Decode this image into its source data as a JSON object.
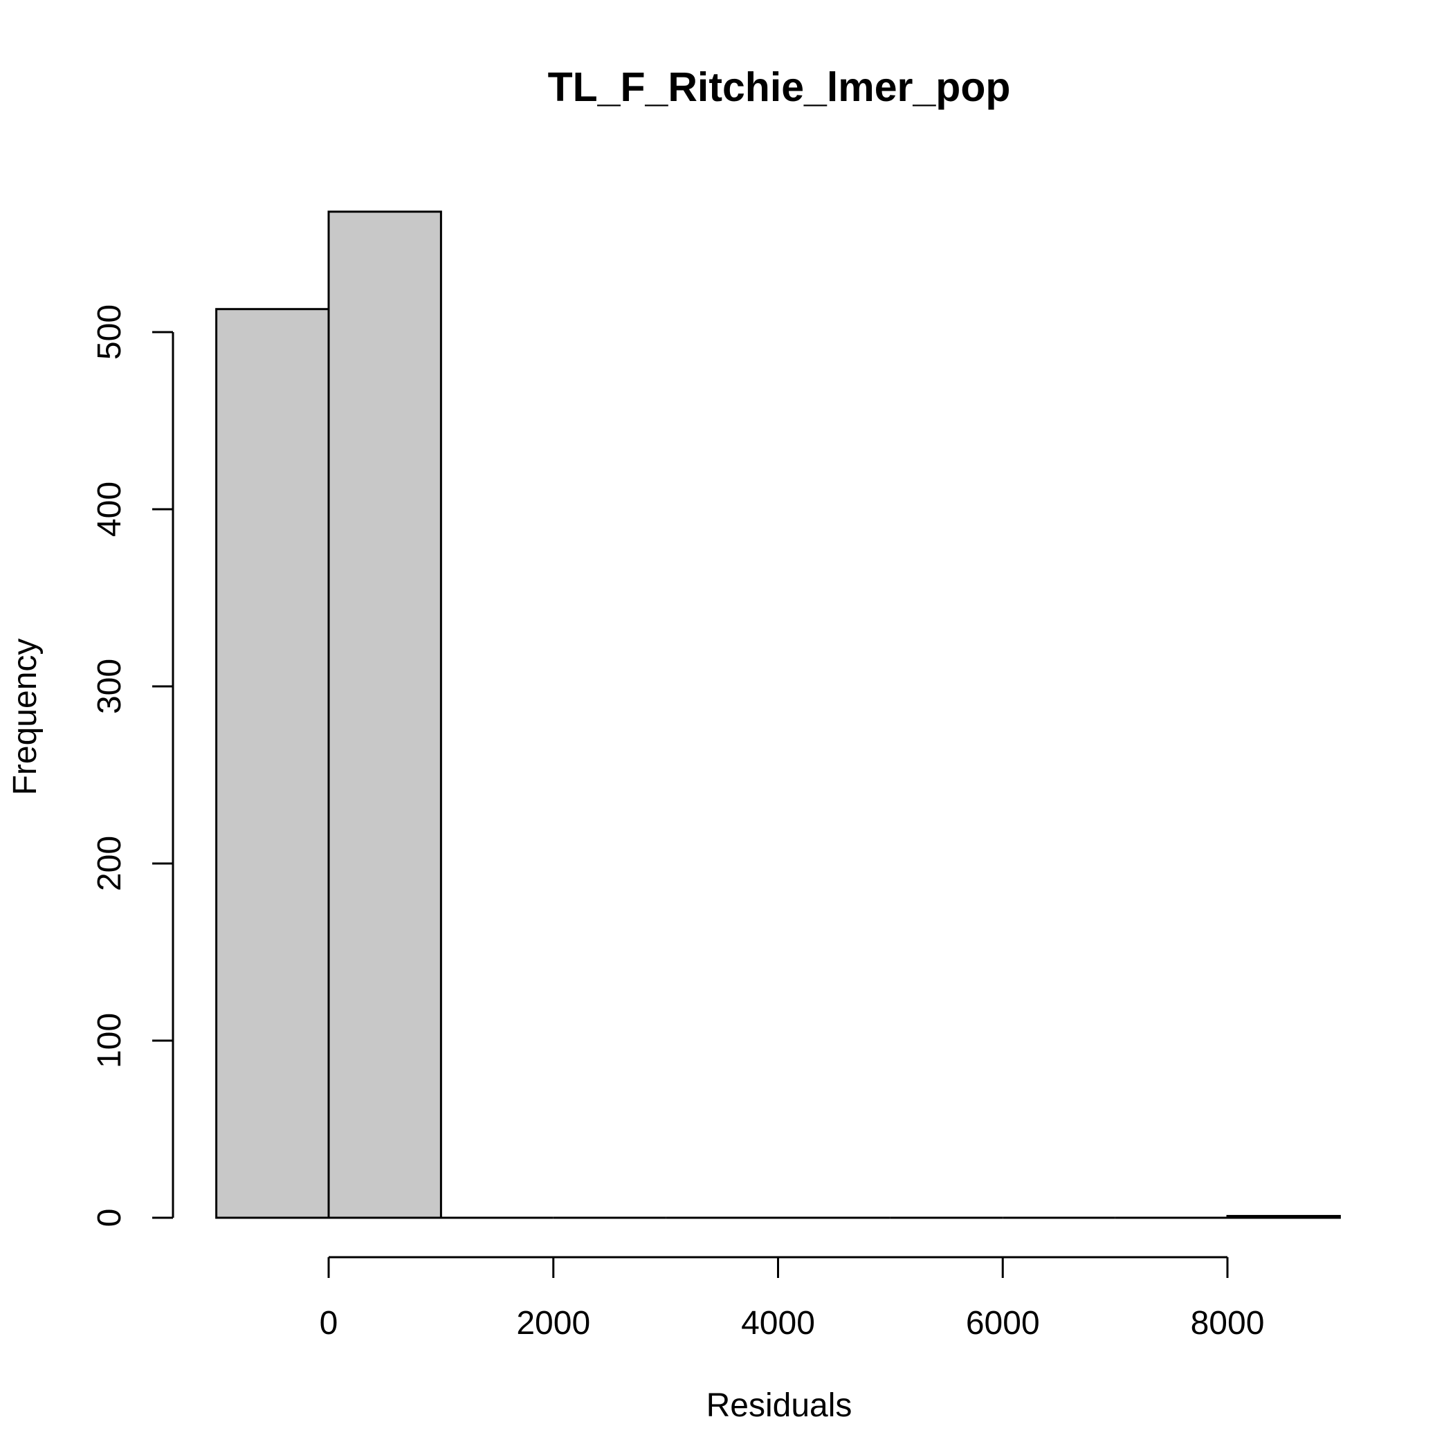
{
  "chart_data": {
    "type": "bar",
    "subtype": "histogram",
    "title": "TL_F_Ritchie_lmer_pop",
    "xlabel": "Residuals",
    "ylabel": "Frequency",
    "bin_width": 1000,
    "bins": [
      {
        "start": -1000,
        "end": 0,
        "count": 513
      },
      {
        "start": 0,
        "end": 1000,
        "count": 568
      },
      {
        "start": 1000,
        "end": 2000,
        "count": 0
      },
      {
        "start": 2000,
        "end": 3000,
        "count": 0
      },
      {
        "start": 3000,
        "end": 4000,
        "count": 0
      },
      {
        "start": 4000,
        "end": 5000,
        "count": 0
      },
      {
        "start": 5000,
        "end": 6000,
        "count": 0
      },
      {
        "start": 6000,
        "end": 7000,
        "count": 0
      },
      {
        "start": 7000,
        "end": 8000,
        "count": 0
      },
      {
        "start": 8000,
        "end": 9000,
        "count": 1
      }
    ],
    "x_ticks": [
      "0",
      "2000",
      "4000",
      "6000",
      "8000"
    ],
    "y_ticks": [
      "0",
      "100",
      "200",
      "300",
      "400",
      "500"
    ],
    "xlim": [
      -1000,
      9000
    ],
    "ylim": [
      0,
      568
    ],
    "bar_fill": "#c8c8c8",
    "bar_stroke": "#000000",
    "grid": false,
    "legend": "none"
  }
}
